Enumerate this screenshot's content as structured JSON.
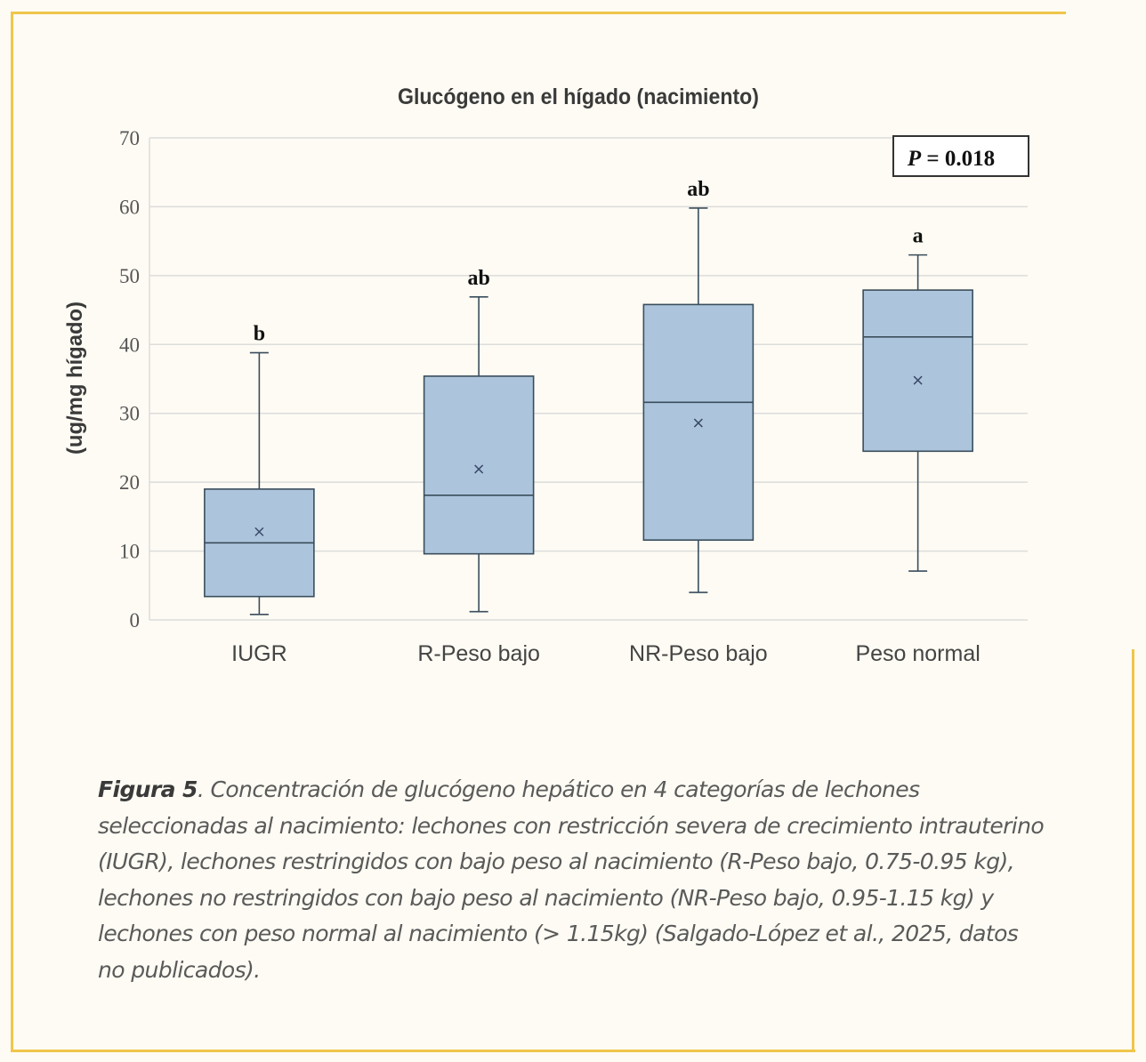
{
  "chart_data": {
    "type": "box",
    "title": "Glucógeno en el hígado (nacimiento)",
    "ylabel": "(ug/mg hígado)",
    "xlabel": "",
    "ylim": [
      0,
      70
    ],
    "yticks": [
      0,
      10,
      20,
      30,
      40,
      50,
      60,
      70
    ],
    "grid": true,
    "pvalue_label": "P",
    "pvalue_text": " = 0.018",
    "box_color": "#adc5dc",
    "box_stroke": "#3a4d5c",
    "categories": [
      "IUGR",
      "R-Peso bajo",
      "NR-Peso bajo",
      "Peso normal"
    ],
    "boxes": [
      {
        "category": "IUGR",
        "min": 0.8,
        "q1": 3.4,
        "median": 11.2,
        "q3": 19.0,
        "max": 38.8,
        "mean": 12.8,
        "letter": "b"
      },
      {
        "category": "R-Peso bajo",
        "min": 1.2,
        "q1": 9.6,
        "median": 18.1,
        "q3": 35.4,
        "max": 46.9,
        "mean": 21.9,
        "letter": "ab"
      },
      {
        "category": "NR-Peso bajo",
        "min": 4.0,
        "q1": 11.6,
        "median": 31.6,
        "q3": 45.8,
        "max": 59.8,
        "mean": 28.6,
        "letter": "ab"
      },
      {
        "category": "Peso normal",
        "min": 7.1,
        "q1": 24.5,
        "median": 41.1,
        "q3": 47.9,
        "max": 53.0,
        "mean": 34.8,
        "letter": "a"
      }
    ]
  },
  "caption": {
    "lead": "Figura 5",
    "text": ". Concentración de glucógeno hepático en 4 categorías de lechones seleccionadas al nacimiento: lechones con restricción severa de crecimiento intrauterino (IUGR), lechones restringidos con bajo peso al nacimiento (R-Peso bajo, 0.75-0.95 kg), lechones no restringidos con bajo peso al nacimiento (NR-Peso bajo, 0.95-1.15 kg) y lechones con peso normal al nacimiento (> 1.15kg) (Salgado-López et al., 2025, datos no publicados)."
  }
}
